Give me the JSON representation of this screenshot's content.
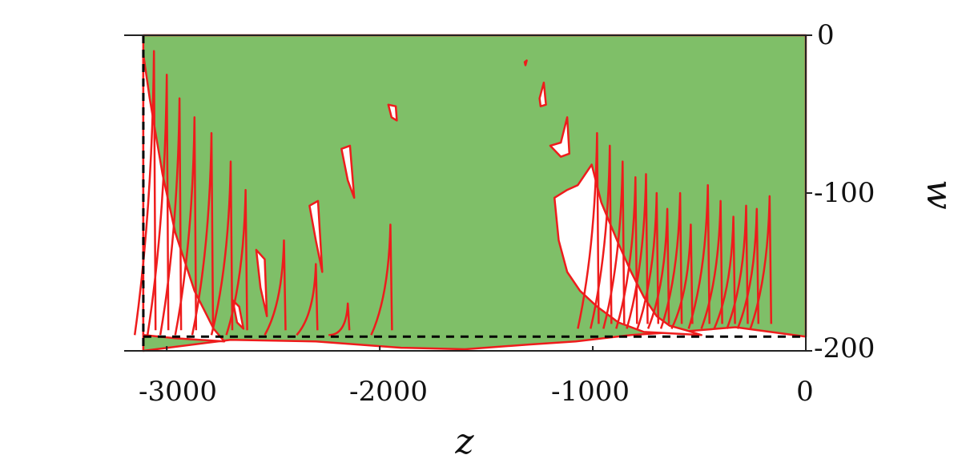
{
  "chart_data": {
    "type": "area",
    "title": "",
    "xlabel": "z",
    "ylabel": "w",
    "xlim": [
      -3200,
      0
    ],
    "ylim": [
      -200,
      0
    ],
    "xticks": [
      -3000,
      -2000,
      -1000,
      0
    ],
    "xtick_labels": [
      "-3000",
      "-2000",
      "-1000",
      "0"
    ],
    "yticks": [
      0,
      -100,
      -200
    ],
    "ytick_labels": [
      "0",
      "-100",
      "-200"
    ],
    "y_axis_side": "right",
    "grid": false,
    "legend": "none",
    "colors": {
      "fill": "#7fbf68",
      "boundary": "#ee1c1c",
      "dashed": "#000000"
    },
    "dashed_lines": [
      {
        "orientation": "vertical",
        "x": -3110,
        "y_range": [
          -200,
          0
        ]
      },
      {
        "orientation": "horizontal",
        "y": -191,
        "x_range": [
          -3110,
          0
        ]
      }
    ],
    "series": [
      {
        "kind": "region",
        "polygon": [
          [
            -3110,
            0
          ],
          [
            0,
            0
          ],
          [
            0,
            -191
          ],
          [
            -330,
            -185
          ],
          [
            -600,
            -188
          ],
          [
            -820,
            -190
          ],
          [
            -1080,
            -194
          ],
          [
            -1300,
            -196
          ],
          [
            -1600,
            -199
          ],
          [
            -1900,
            -198
          ],
          [
            -2300,
            -194
          ],
          [
            -2700,
            -193
          ],
          [
            -3110,
            -200
          ]
        ]
      }
    ],
    "gaps": [
      {
        "polygon": [
          [
            -3110,
            -12
          ],
          [
            -3080,
            -40
          ],
          [
            -3020,
            -88
          ],
          [
            -2960,
            -125
          ],
          [
            -2870,
            -162
          ],
          [
            -2780,
            -186
          ],
          [
            -2730,
            -194
          ],
          [
            -2960,
            -192
          ],
          [
            -3110,
            -190
          ]
        ]
      },
      {
        "polygon": [
          [
            -1180,
            -103
          ],
          [
            -1120,
            -98
          ],
          [
            -1070,
            -95
          ],
          [
            -1005,
            -82
          ],
          [
            -960,
            -106
          ],
          [
            -880,
            -132
          ],
          [
            -820,
            -150
          ],
          [
            -760,
            -166
          ],
          [
            -700,
            -178
          ],
          [
            -640,
            -184
          ],
          [
            -560,
            -187
          ],
          [
            -490,
            -190
          ],
          [
            -760,
            -188
          ],
          [
            -880,
            -182
          ],
          [
            -980,
            -172
          ],
          [
            -1060,
            -162
          ],
          [
            -1120,
            -150
          ],
          [
            -1160,
            -130
          ]
        ]
      },
      {
        "polygon": [
          [
            -1200,
            -70
          ],
          [
            -1150,
            -68
          ],
          [
            -1120,
            -52
          ],
          [
            -1110,
            -75
          ],
          [
            -1150,
            -77
          ]
        ]
      },
      {
        "polygon": [
          [
            -1250,
            -40
          ],
          [
            -1230,
            -30
          ],
          [
            -1220,
            -44
          ],
          [
            -1245,
            -45
          ]
        ]
      },
      {
        "polygon": [
          [
            -1320,
            -17
          ],
          [
            -1310,
            -16
          ],
          [
            -1316,
            -19
          ]
        ]
      },
      {
        "polygon": [
          [
            -1960,
            -44
          ],
          [
            -1925,
            -45
          ],
          [
            -1920,
            -54
          ],
          [
            -1945,
            -52
          ]
        ]
      },
      {
        "polygon": [
          [
            -2180,
            -72
          ],
          [
            -2140,
            -70
          ],
          [
            -2120,
            -103
          ],
          [
            -2150,
            -92
          ]
        ]
      },
      {
        "polygon": [
          [
            -2330,
            -108
          ],
          [
            -2290,
            -105
          ],
          [
            -2270,
            -150
          ],
          [
            -2300,
            -130
          ]
        ]
      },
      {
        "polygon": [
          [
            -2580,
            -136
          ],
          [
            -2540,
            -142
          ],
          [
            -2530,
            -178
          ],
          [
            -2560,
            -160
          ]
        ]
      },
      {
        "polygon": [
          [
            -2690,
            -168
          ],
          [
            -2660,
            -172
          ],
          [
            -2640,
            -186
          ],
          [
            -2670,
            -182
          ]
        ]
      }
    ],
    "boundary_spikes_z": [
      -3060,
      -3000,
      -2940,
      -2870,
      -2790,
      -2700,
      -2630,
      -2450,
      -2300,
      -2150,
      -1950,
      -980,
      -920,
      -860,
      -800,
      -750,
      -700,
      -650,
      -590,
      -540,
      -460,
      -400,
      -340,
      -280,
      -230,
      -170
    ],
    "boundary_spike_tops_w": [
      -10,
      -25,
      -40,
      -52,
      -62,
      -80,
      -98,
      -130,
      -145,
      -170,
      -120,
      -62,
      -70,
      -80,
      -90,
      -88,
      -100,
      -110,
      -100,
      -120,
      -95,
      -105,
      -115,
      -108,
      -110,
      -102
    ]
  }
}
